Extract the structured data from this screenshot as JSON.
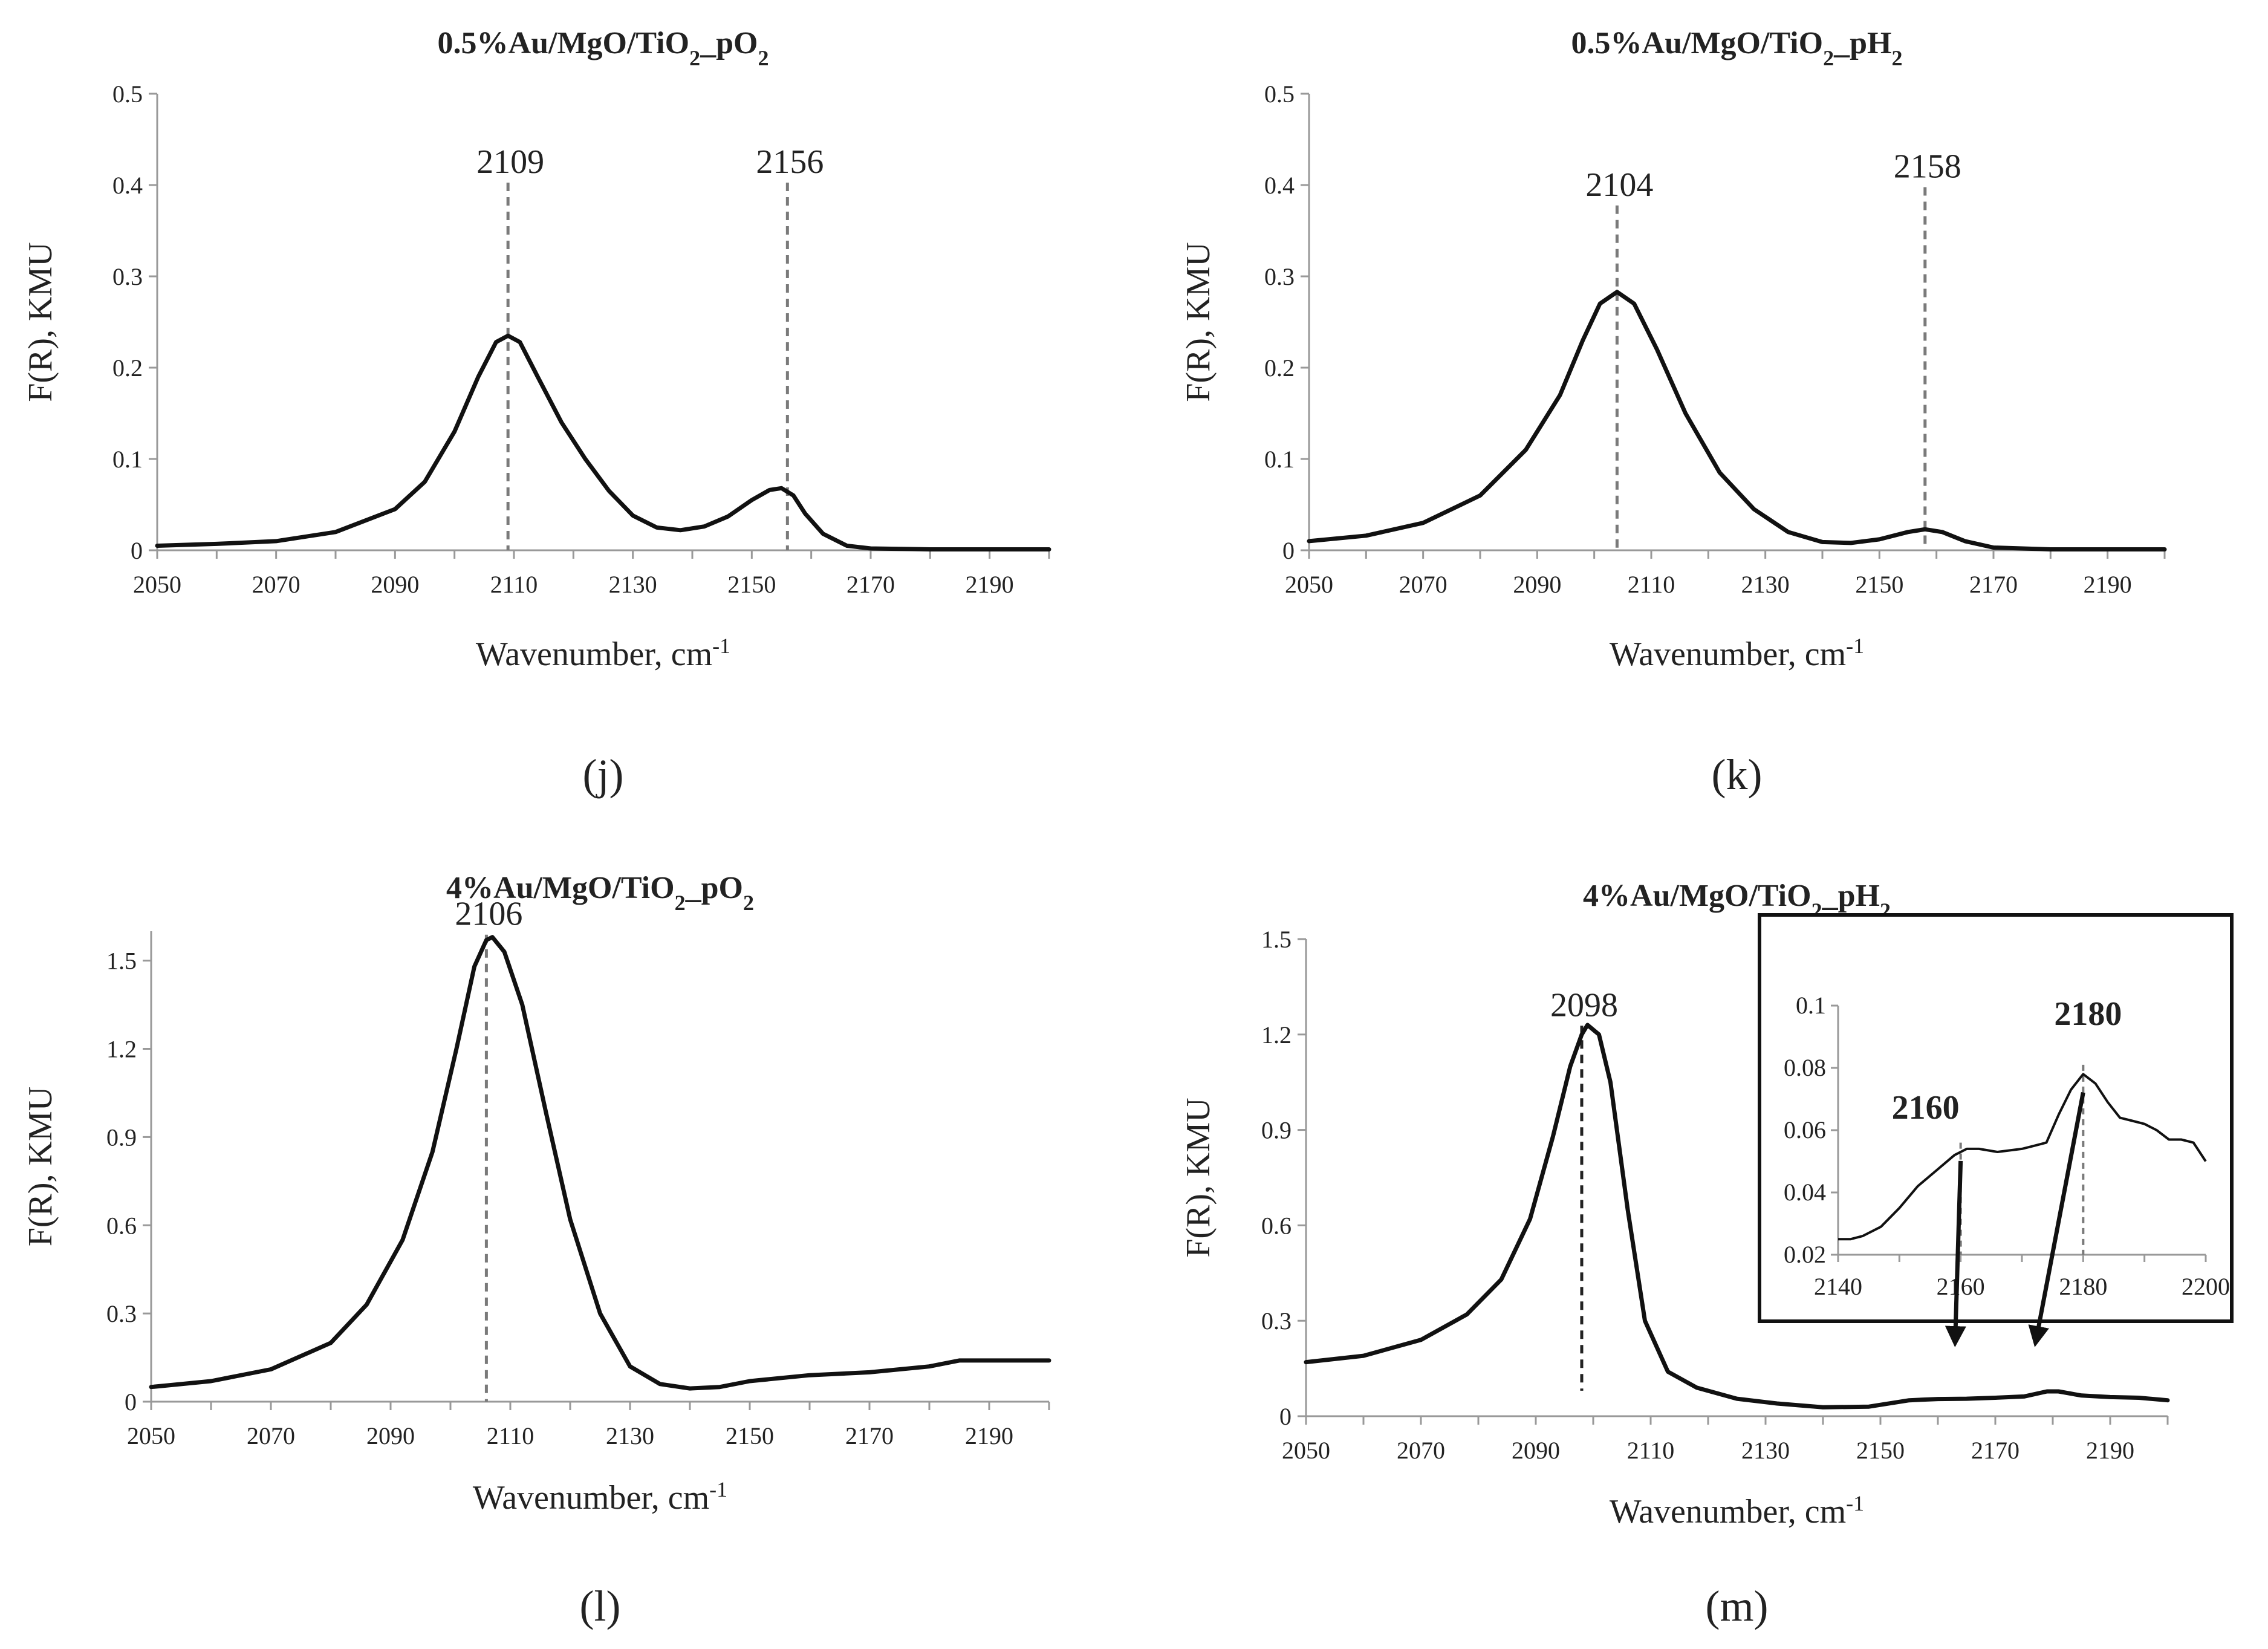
{
  "colors": {
    "curve": "#111111",
    "axis": "#999999",
    "dash": "#7a7a7a",
    "text": "#222222"
  },
  "chart_data": [
    {
      "type": "line",
      "panel": "(j)",
      "title_main": "0.5%Au/MgO/TiO",
      "title_sub": "2",
      "title_tail": "_pO",
      "title_sub2": "2",
      "xlabel": "Wavenumber, cm",
      "xlabel_sup": "-1",
      "ylabel": "F(R), KMU",
      "xlim": [
        2050,
        2200
      ],
      "ylim": [
        0,
        0.5
      ],
      "xticks": [
        2050,
        2070,
        2090,
        2110,
        2130,
        2150,
        2170,
        2190
      ],
      "yticks": [
        0,
        0.1,
        0.2,
        0.3,
        0.4,
        0.5
      ],
      "peaks": [
        {
          "x": 2109,
          "label": "2109",
          "top": 0.4
        },
        {
          "x": 2156,
          "label": "2156",
          "top": 0.4
        }
      ],
      "x": [
        2050,
        2060,
        2070,
        2080,
        2090,
        2095,
        2100,
        2104,
        2107,
        2109,
        2111,
        2114,
        2118,
        2122,
        2126,
        2130,
        2134,
        2138,
        2142,
        2146,
        2150,
        2153,
        2155,
        2157,
        2159,
        2162,
        2166,
        2170,
        2180,
        2190,
        2200
      ],
      "y": [
        0.005,
        0.007,
        0.01,
        0.02,
        0.045,
        0.075,
        0.13,
        0.19,
        0.228,
        0.235,
        0.228,
        0.19,
        0.14,
        0.1,
        0.065,
        0.038,
        0.025,
        0.022,
        0.026,
        0.037,
        0.055,
        0.066,
        0.068,
        0.06,
        0.04,
        0.018,
        0.005,
        0.002,
        0.001,
        0.001,
        0.001
      ]
    },
    {
      "type": "line",
      "panel": "(k)",
      "title_main": "0.5%Au/MgO/TiO",
      "title_sub": "2",
      "title_tail": "_pH",
      "title_sub2": "2",
      "xlabel": "Wavenumber, cm",
      "xlabel_sup": "-1",
      "ylabel": "F(R), KMU",
      "xlim": [
        2050,
        2200
      ],
      "ylim": [
        0,
        0.5
      ],
      "xticks": [
        2050,
        2070,
        2090,
        2110,
        2130,
        2150,
        2170,
        2190
      ],
      "yticks": [
        0,
        0.1,
        0.2,
        0.3,
        0.4,
        0.5
      ],
      "peaks": [
        {
          "x": 2104,
          "label": "2104",
          "top": 0.375
        },
        {
          "x": 2158,
          "label": "2158",
          "top": 0.395
        }
      ],
      "x": [
        2050,
        2060,
        2070,
        2080,
        2088,
        2094,
        2098,
        2101,
        2104,
        2107,
        2111,
        2116,
        2122,
        2128,
        2134,
        2140,
        2145,
        2150,
        2155,
        2158,
        2161,
        2165,
        2170,
        2180,
        2190,
        2200
      ],
      "y": [
        0.01,
        0.016,
        0.03,
        0.06,
        0.11,
        0.17,
        0.23,
        0.27,
        0.283,
        0.27,
        0.22,
        0.15,
        0.085,
        0.045,
        0.02,
        0.009,
        0.008,
        0.012,
        0.02,
        0.023,
        0.02,
        0.01,
        0.003,
        0.001,
        0.001,
        0.001
      ]
    },
    {
      "type": "line",
      "panel": "(l)",
      "title_main": "4%Au/MgO/TiO",
      "title_sub": "2",
      "title_tail": "_pO",
      "title_sub2": "2",
      "xlabel": "Wavenumber, cm",
      "xlabel_sup": "-1",
      "ylabel": "F(R), KMU",
      "xlim": [
        2050,
        2200
      ],
      "ylim": [
        0,
        1.6
      ],
      "xticks": [
        2050,
        2070,
        2090,
        2110,
        2130,
        2150,
        2170,
        2190
      ],
      "yticks": [
        0,
        0.3,
        0.6,
        0.9,
        1.2,
        1.5
      ],
      "yticklabels": [
        "0",
        "0.3",
        "0.6",
        "0.9",
        "1.2",
        "1.5"
      ],
      "peaks": [
        {
          "x": 2106,
          "label": "2106",
          "top": 1.58
        }
      ],
      "x": [
        2050,
        2060,
        2070,
        2080,
        2086,
        2092,
        2097,
        2101,
        2104,
        2106,
        2107,
        2109,
        2112,
        2116,
        2120,
        2125,
        2130,
        2135,
        2140,
        2145,
        2150,
        2160,
        2170,
        2180,
        2185,
        2190,
        2200
      ],
      "y": [
        0.05,
        0.07,
        0.11,
        0.2,
        0.33,
        0.55,
        0.85,
        1.2,
        1.48,
        1.57,
        1.58,
        1.53,
        1.35,
        0.98,
        0.62,
        0.3,
        0.12,
        0.06,
        0.045,
        0.05,
        0.07,
        0.09,
        0.1,
        0.12,
        0.14,
        0.14,
        0.14
      ]
    },
    {
      "type": "line",
      "panel": "(m)",
      "title_main": "4%Au/MgO/TiO",
      "title_sub": "2",
      "title_tail": "_pH",
      "title_sub2": "2",
      "xlabel": "Wavenumber, cm",
      "xlabel_sup": "-1",
      "ylabel": "F(R), KMU",
      "xlim": [
        2050,
        2200
      ],
      "ylim": [
        0,
        1.5
      ],
      "xticks": [
        2050,
        2070,
        2090,
        2110,
        2130,
        2150,
        2170,
        2190
      ],
      "yticks": [
        0,
        0.3,
        0.6,
        0.9,
        1.2,
        1.5
      ],
      "yticklabels": [
        "0",
        "0.3",
        "0.6",
        "0.9",
        "1.2",
        "1.5"
      ],
      "peaks": [
        {
          "x": 2098,
          "label": "2098",
          "top": 1.22,
          "bottom": 0.08
        }
      ],
      "x": [
        2050,
        2060,
        2070,
        2078,
        2084,
        2089,
        2093,
        2096,
        2098,
        2099,
        2101,
        2103,
        2106,
        2109,
        2113,
        2118,
        2125,
        2132,
        2140,
        2148,
        2155,
        2160,
        2165,
        2170,
        2175,
        2179,
        2181,
        2185,
        2190,
        2195,
        2200
      ],
      "y": [
        0.17,
        0.19,
        0.24,
        0.32,
        0.43,
        0.62,
        0.88,
        1.1,
        1.2,
        1.23,
        1.2,
        1.05,
        0.65,
        0.3,
        0.14,
        0.09,
        0.055,
        0.04,
        0.028,
        0.03,
        0.05,
        0.054,
        0.055,
        0.058,
        0.062,
        0.078,
        0.078,
        0.065,
        0.06,
        0.058,
        0.05
      ],
      "inset": {
        "xlim": [
          2140,
          2200
        ],
        "ylim": [
          0.02,
          0.1
        ],
        "xticks": [
          2140,
          2160,
          2180,
          2200
        ],
        "yticks": [
          0.02,
          0.04,
          0.06,
          0.08,
          0.1
        ],
        "yticklabels": [
          "0.02",
          "0.04",
          "0.06",
          "0.08",
          "0.1"
        ],
        "peaks": [
          {
            "x": 2160,
            "label": "2160"
          },
          {
            "x": 2180,
            "label": "2180"
          }
        ],
        "x": [
          2140,
          2142,
          2144,
          2147,
          2150,
          2153,
          2156,
          2159,
          2161,
          2163,
          2166,
          2170,
          2172,
          2174,
          2176,
          2178,
          2180,
          2182,
          2184,
          2186,
          2188,
          2190,
          2192,
          2194,
          2196,
          2198,
          2200
        ],
        "y": [
          0.025,
          0.025,
          0.026,
          0.029,
          0.035,
          0.042,
          0.047,
          0.052,
          0.054,
          0.054,
          0.053,
          0.054,
          0.055,
          0.056,
          0.065,
          0.073,
          0.078,
          0.075,
          0.069,
          0.064,
          0.063,
          0.062,
          0.06,
          0.057,
          0.057,
          0.056,
          0.05
        ]
      }
    }
  ]
}
